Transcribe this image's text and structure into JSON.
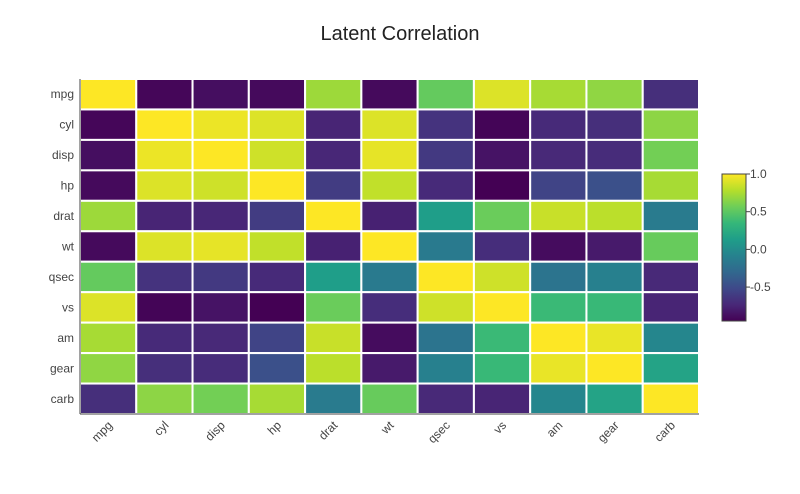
{
  "chart_data": {
    "type": "heatmap",
    "title": "Latent Correlation",
    "xlabel": "",
    "ylabel": "",
    "x_categories": [
      "mpg",
      "cyl",
      "disp",
      "hp",
      "drat",
      "wt",
      "qsec",
      "vs",
      "am",
      "gear",
      "carb"
    ],
    "y_categories": [
      "mpg",
      "cyl",
      "disp",
      "hp",
      "drat",
      "wt",
      "qsec",
      "vs",
      "am",
      "gear",
      "carb"
    ],
    "values": [
      [
        1.0,
        -0.92,
        -0.88,
        -0.9,
        0.71,
        -0.9,
        0.53,
        0.9,
        0.74,
        0.67,
        -0.69
      ],
      [
        -0.92,
        1.0,
        0.95,
        0.9,
        -0.75,
        0.9,
        -0.66,
        -0.93,
        -0.72,
        -0.69,
        0.66
      ],
      [
        -0.88,
        0.95,
        1.0,
        0.86,
        -0.74,
        0.93,
        -0.62,
        -0.85,
        -0.73,
        -0.71,
        0.58
      ],
      [
        -0.9,
        0.9,
        0.86,
        1.0,
        -0.6,
        0.82,
        -0.72,
        -0.95,
        -0.55,
        -0.47,
        0.74
      ],
      [
        0.71,
        -0.75,
        -0.74,
        -0.6,
        1.0,
        -0.77,
        0.13,
        0.55,
        0.84,
        0.8,
        -0.14
      ],
      [
        -0.9,
        0.9,
        0.93,
        0.82,
        -0.77,
        1.0,
        -0.15,
        -0.7,
        -0.89,
        -0.81,
        0.54
      ],
      [
        0.53,
        -0.66,
        -0.62,
        -0.72,
        0.13,
        -0.15,
        1.0,
        0.86,
        -0.2,
        -0.1,
        -0.73
      ],
      [
        0.9,
        -0.93,
        -0.85,
        -0.95,
        0.55,
        -0.7,
        0.86,
        1.0,
        0.37,
        0.36,
        -0.75
      ],
      [
        0.74,
        -0.72,
        -0.73,
        -0.55,
        0.84,
        -0.89,
        -0.2,
        0.37,
        1.0,
        0.94,
        -0.05
      ],
      [
        0.67,
        -0.69,
        -0.71,
        -0.47,
        0.8,
        -0.81,
        -0.1,
        0.36,
        0.94,
        1.0,
        0.18
      ],
      [
        -0.69,
        0.66,
        0.58,
        0.74,
        -0.14,
        0.54,
        -0.73,
        -0.75,
        -0.05,
        0.18,
        1.0
      ]
    ],
    "zlim": [
      -0.95,
      1.0
    ],
    "colorscale": "viridis",
    "colorbar": {
      "ticks": [
        1.0,
        0.5,
        0.0,
        -0.5
      ],
      "tick_labels": [
        "1.0",
        "0.5",
        "0.0",
        "-0.5"
      ]
    },
    "grid": false,
    "colors": {
      "viridis_stops": [
        "#440154",
        "#482878",
        "#3e4989",
        "#31688e",
        "#26828e",
        "#1f9e89",
        "#35b779",
        "#6ece58",
        "#b5de2b",
        "#fde725"
      ],
      "cell_border": "#ffffff"
    }
  }
}
